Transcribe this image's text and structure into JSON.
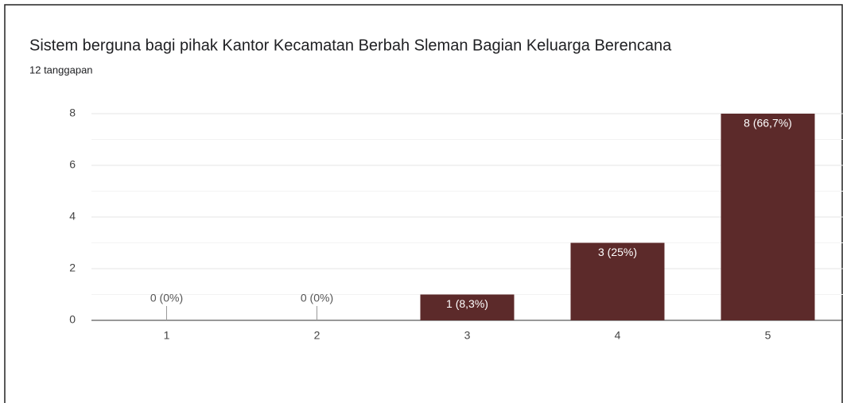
{
  "chart_data": {
    "type": "bar",
    "title": "Sistem berguna bagi pihak Kantor Kecamatan Berbah Sleman Bagian Keluarga Berencana",
    "subtitle": "12 tanggapan",
    "categories": [
      "1",
      "2",
      "3",
      "4",
      "5"
    ],
    "values": [
      0,
      0,
      1,
      3,
      8
    ],
    "value_labels": [
      "0 (0%)",
      "0 (0%)",
      "1 (8,3%)",
      "3 (25%)",
      "8 (66,7%)"
    ],
    "color": "#5c2a2a",
    "ylim": [
      0,
      8
    ],
    "yticks": [
      0,
      2,
      4,
      6,
      8
    ],
    "grid": true
  }
}
